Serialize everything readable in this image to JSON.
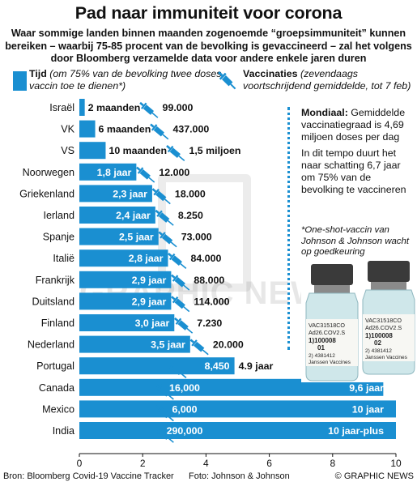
{
  "title": "Pad naar immuniteit voor corona",
  "subtitle": "Waar sommige landen binnen maanden zogenoemde “groepsimmuniteit” kunnen bereiken – waarbij 75-85 procent van de bevolking is gevaccineerd – zal het volgens door Bloomberg verzamelde data voor andere enkele jaren duren",
  "legend": {
    "tijd_label": "Tijd",
    "tijd_desc": "(om 75% van de bevolking twee doses vaccin toe te dienen*)",
    "vacc_label": "Vaccinaties",
    "vacc_desc": "(zevendaags voortschrijdend gemiddelde, tot 7 feb)"
  },
  "side_note": {
    "mondiaal_label": "Mondiaal:",
    "mondiaal_text": "Gemiddelde vaccinatiegraad is 4,69 miljoen doses per dag",
    "tempo_text": "In dit tempo duurt het naar schatting 6,7 jaar om 75% van de bevolking te vaccineren",
    "oneshot_text": "*One-shot-vaccin van Johnson & Johnson wacht op goedkeuring"
  },
  "photo_labels": {
    "vial1_lines": [
      "VAC31518CO",
      "Ad26.COV2.S",
      "1)100008",
      "01",
      "2) 4381412",
      "Janssen Vaccines"
    ],
    "vial2_lines": [
      "VAC31518CO",
      "Ad26.COV2.S",
      "1)100008",
      "02",
      "2) 4381412",
      "Janssen Vaccines"
    ]
  },
  "watermark": "GRAPHIC NEWS",
  "footer": {
    "source": "Bron: Bloomberg Covid-19 Vaccine Tracker",
    "photo": "Foto: Johnson & Johnson",
    "credit": "© GRAPHIC NEWS"
  },
  "colors": {
    "bar": "#1a8fd1",
    "text": "#111111",
    "syringe": "#1a8fd1"
  },
  "chart_data": {
    "type": "bar",
    "orientation": "horizontal",
    "xlim": [
      0,
      10
    ],
    "xticks": [
      "0",
      "2",
      "4",
      "6",
      "8",
      "10"
    ],
    "categories": [
      "Israël",
      "VK",
      "VS",
      "Noorwegen",
      "Griekenland",
      "Ierland",
      "Spanje",
      "Italië",
      "Frankrijk",
      "Duitsland",
      "Finland",
      "Nederland",
      "Portugal",
      "Canada",
      "Mexico",
      "India"
    ],
    "series": [
      {
        "name": "Tijd",
        "values": [
          0.17,
          0.5,
          0.83,
          1.8,
          2.3,
          2.4,
          2.5,
          2.8,
          2.9,
          2.9,
          3.0,
          3.5,
          4.9,
          9.6,
          10,
          10
        ],
        "labels": [
          "2 maanden",
          "6 maanden",
          "10 maanden",
          "1,8 jaar",
          "2,3 jaar",
          "2,4 jaar",
          "2,5 jaar",
          "2,8 jaar",
          "2,9 jaar",
          "2,9 jaar",
          "3,0 jaar",
          "3,5 jaar",
          "4.9 jaar",
          "9,6 jaar",
          "10 jaar",
          "10 jaar-plus"
        ]
      },
      {
        "name": "Vaccinaties",
        "labels": [
          "99.000",
          "437.000",
          "1,5 miljoen",
          "12.000",
          "18.000",
          "8.250",
          "73.000",
          "84.000",
          "88.000",
          "114.000",
          "7.230",
          "20.000",
          "8,450",
          "16,000",
          "6,000",
          "290,000"
        ]
      }
    ]
  }
}
